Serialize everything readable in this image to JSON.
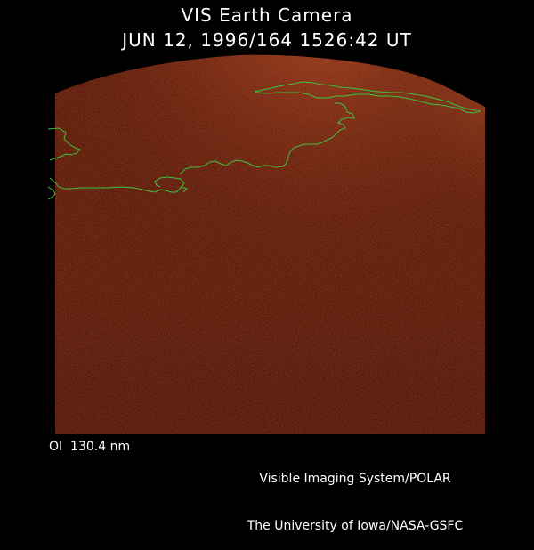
{
  "header": {
    "instrument": "VIS Earth Camera",
    "timestamp": "JUN 12, 1996/164 1526:42 UT"
  },
  "footer": {
    "filter": "OI  130.4 nm",
    "credit_line_1": "Visible Imaging System/POLAR",
    "credit_line_2": "The University of Iowa/NASA-GSFC"
  },
  "colors": {
    "background": "#000000",
    "image_base": "#4a0d04",
    "image_glow": "#b84a22",
    "coastline": "#3ec23e",
    "text": "#ffffff"
  }
}
